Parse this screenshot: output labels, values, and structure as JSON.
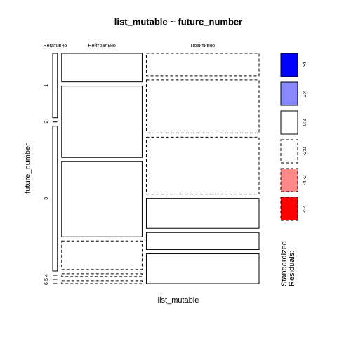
{
  "chart_data": {
    "type": "mosaic",
    "title": "list_mutable ~ future_number",
    "x_label": "list_mutable",
    "y_label": "future_number",
    "columns": [
      "Негативно",
      "Нейтрально",
      "Позитивно"
    ],
    "rows": [
      "1",
      "2",
      "3",
      "4",
      "5",
      "6"
    ],
    "counts": [
      [
        4,
        0,
        9,
        0,
        0,
        0
      ],
      [
        30,
        75,
        79,
        30,
        3,
        3
      ],
      [
        33,
        78,
        84,
        44,
        25,
        44
      ]
    ],
    "residuals": [
      [
        1,
        -0.5,
        1,
        -0.5,
        -0.5,
        -0.5
      ],
      [
        1,
        1,
        1,
        -1,
        -0.5,
        -0.5
      ],
      [
        -1,
        -1,
        -1,
        1,
        1,
        1
      ]
    ],
    "legend_title": "Standardized\nResiduals:",
    "legend": [
      {
        "label": ">4",
        "color": "#0000ff",
        "min": 4
      },
      {
        "label": "2:4",
        "color": "#8888ff",
        "min": 2
      },
      {
        "label": "0:2",
        "color": "#ffffff",
        "min": 0
      },
      {
        "label": "-2:0",
        "color": "#ffffff",
        "min": -2
      },
      {
        "label": "-4:-2",
        "color": "#ff8888",
        "min": -4
      },
      {
        "label": "<-4",
        "color": "#ff0000",
        "min": null
      }
    ]
  }
}
